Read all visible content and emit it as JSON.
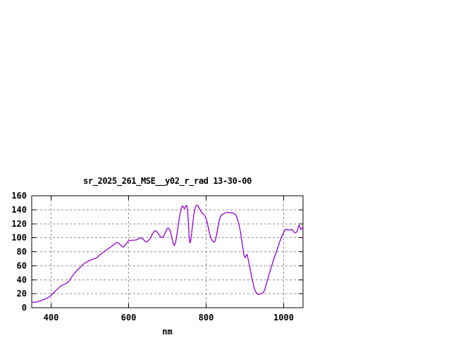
{
  "chart_data": {
    "type": "line",
    "title": "sr_2025_261_MSE__y02_r_rad 13-30-00",
    "xlabel": "nm",
    "ylabel": "",
    "xlim": [
      350,
      1050
    ],
    "ylim": [
      0,
      160
    ],
    "x_ticks": [
      400,
      600,
      800,
      1000
    ],
    "y_ticks": [
      0,
      20,
      40,
      60,
      80,
      100,
      120,
      140,
      160
    ],
    "grid": true,
    "legend": "none",
    "line_color": "#9400d3",
    "grid_color": "#909090",
    "border_color": "#000000",
    "series": [
      {
        "name": "sr_2025_261_MSE__y02_r_rad 13-30-00",
        "points": [
          [
            350,
            8
          ],
          [
            355,
            8
          ],
          [
            360,
            8
          ],
          [
            365,
            8.5
          ],
          [
            370,
            9.5
          ],
          [
            375,
            10.5
          ],
          [
            380,
            11.5
          ],
          [
            385,
            12.5
          ],
          [
            390,
            14
          ],
          [
            395,
            15.5
          ],
          [
            400,
            17.5
          ],
          [
            404,
            20
          ],
          [
            408,
            22
          ],
          [
            412,
            24.5
          ],
          [
            416,
            26.5
          ],
          [
            420,
            28.5
          ],
          [
            424,
            30.5
          ],
          [
            428,
            32
          ],
          [
            432,
            33
          ],
          [
            436,
            34
          ],
          [
            440,
            35
          ],
          [
            444,
            36.5
          ],
          [
            448,
            39.5
          ],
          [
            452,
            43
          ],
          [
            456,
            46
          ],
          [
            460,
            49
          ],
          [
            464,
            51.5
          ],
          [
            468,
            54
          ],
          [
            472,
            56
          ],
          [
            476,
            58
          ],
          [
            480,
            60.5
          ],
          [
            484,
            62.5
          ],
          [
            488,
            64
          ],
          [
            492,
            65.5
          ],
          [
            496,
            66.5
          ],
          [
            500,
            67.5
          ],
          [
            504,
            68.5
          ],
          [
            508,
            69.5
          ],
          [
            512,
            70
          ],
          [
            516,
            71
          ],
          [
            520,
            72.5
          ],
          [
            524,
            74.5
          ],
          [
            528,
            76.5
          ],
          [
            532,
            78
          ],
          [
            536,
            80
          ],
          [
            540,
            81.5
          ],
          [
            544,
            83
          ],
          [
            548,
            84.5
          ],
          [
            552,
            86
          ],
          [
            556,
            87.5
          ],
          [
            560,
            89.5
          ],
          [
            564,
            91.5
          ],
          [
            568,
            93
          ],
          [
            572,
            93
          ],
          [
            576,
            91.5
          ],
          [
            580,
            89
          ],
          [
            584,
            87
          ],
          [
            588,
            87
          ],
          [
            592,
            90.5
          ],
          [
            596,
            93.5
          ],
          [
            600,
            95.5
          ],
          [
            604,
            96
          ],
          [
            608,
            96.5
          ],
          [
            612,
            96.5
          ],
          [
            616,
            96.5
          ],
          [
            620,
            97
          ],
          [
            624,
            98
          ],
          [
            628,
            99.5
          ],
          [
            632,
            100
          ],
          [
            636,
            98.5
          ],
          [
            640,
            96.5
          ],
          [
            644,
            94.5
          ],
          [
            648,
            94
          ],
          [
            652,
            96.5
          ],
          [
            656,
            99.5
          ],
          [
            660,
            104
          ],
          [
            664,
            107.5
          ],
          [
            668,
            110
          ],
          [
            672,
            109.5
          ],
          [
            676,
            106.5
          ],
          [
            680,
            103
          ],
          [
            684,
            100.5
          ],
          [
            688,
            100.5
          ],
          [
            692,
            103.5
          ],
          [
            696,
            109
          ],
          [
            700,
            113.5
          ],
          [
            704,
            113.5
          ],
          [
            708,
            109
          ],
          [
            712,
            99
          ],
          [
            715,
            92
          ],
          [
            718,
            89
          ],
          [
            721,
            93.5
          ],
          [
            724,
            102
          ],
          [
            727,
            113
          ],
          [
            730,
            125
          ],
          [
            733,
            135
          ],
          [
            736,
            142
          ],
          [
            739,
            145.5
          ],
          [
            742,
            143
          ],
          [
            744,
            141.5
          ],
          [
            746,
            143.5
          ],
          [
            748,
            145.5
          ],
          [
            750,
            146
          ],
          [
            752,
            140
          ],
          [
            754,
            124
          ],
          [
            756,
            103
          ],
          [
            758,
            92.5
          ],
          [
            760,
            95
          ],
          [
            762,
            103
          ],
          [
            765,
            118
          ],
          [
            768,
            132
          ],
          [
            771,
            141
          ],
          [
            774,
            146
          ],
          [
            777,
            146.5
          ],
          [
            780,
            144.5
          ],
          [
            783,
            141.5
          ],
          [
            786,
            138.5
          ],
          [
            789,
            136
          ],
          [
            792,
            134
          ],
          [
            795,
            132.5
          ],
          [
            798,
            130
          ],
          [
            801,
            126
          ],
          [
            804,
            119
          ],
          [
            807,
            111
          ],
          [
            810,
            103.5
          ],
          [
            813,
            99
          ],
          [
            816,
            96
          ],
          [
            819,
            94.5
          ],
          [
            822,
            94
          ],
          [
            825,
            99
          ],
          [
            828,
            107
          ],
          [
            831,
            117
          ],
          [
            834,
            125
          ],
          [
            837,
            130
          ],
          [
            840,
            132.5
          ],
          [
            844,
            134
          ],
          [
            848,
            135
          ],
          [
            852,
            136
          ],
          [
            856,
            136.5
          ],
          [
            860,
            136
          ],
          [
            864,
            135.5
          ],
          [
            868,
            135.5
          ],
          [
            872,
            134.5
          ],
          [
            876,
            133
          ],
          [
            880,
            128.5
          ],
          [
            884,
            120.5
          ],
          [
            888,
            110
          ],
          [
            891,
            100
          ],
          [
            894,
            88
          ],
          [
            897,
            77
          ],
          [
            900,
            71.5
          ],
          [
            903,
            74.5
          ],
          [
            906,
            76
          ],
          [
            909,
            68
          ],
          [
            912,
            60
          ],
          [
            915,
            51
          ],
          [
            918,
            43
          ],
          [
            921,
            35
          ],
          [
            924,
            28
          ],
          [
            927,
            23.5
          ],
          [
            930,
            21
          ],
          [
            933,
            19.5
          ],
          [
            936,
            19
          ],
          [
            939,
            19.5
          ],
          [
            942,
            20
          ],
          [
            945,
            20.5
          ],
          [
            948,
            22
          ],
          [
            951,
            25.5
          ],
          [
            954,
            31
          ],
          [
            957,
            37
          ],
          [
            960,
            43
          ],
          [
            963,
            48.5
          ],
          [
            966,
            54
          ],
          [
            969,
            59.5
          ],
          [
            972,
            65
          ],
          [
            975,
            70.5
          ],
          [
            978,
            75
          ],
          [
            981,
            79.5
          ],
          [
            984,
            84.5
          ],
          [
            987,
            89.5
          ],
          [
            990,
            94.5
          ],
          [
            993,
            99
          ],
          [
            996,
            103
          ],
          [
            999,
            106.5
          ],
          [
            1002,
            109.5
          ],
          [
            1005,
            112
          ],
          [
            1008,
            112
          ],
          [
            1011,
            111
          ],
          [
            1014,
            111
          ],
          [
            1017,
            111.5
          ],
          [
            1020,
            112
          ],
          [
            1023,
            111
          ],
          [
            1026,
            108.5
          ],
          [
            1029,
            107
          ],
          [
            1032,
            107.5
          ],
          [
            1035,
            109.5
          ],
          [
            1038,
            115.5
          ],
          [
            1040,
            118
          ],
          [
            1042,
            115
          ],
          [
            1044,
            112.5
          ],
          [
            1046,
            112
          ],
          [
            1048,
            114
          ],
          [
            1050,
            111.5
          ]
        ]
      }
    ]
  }
}
